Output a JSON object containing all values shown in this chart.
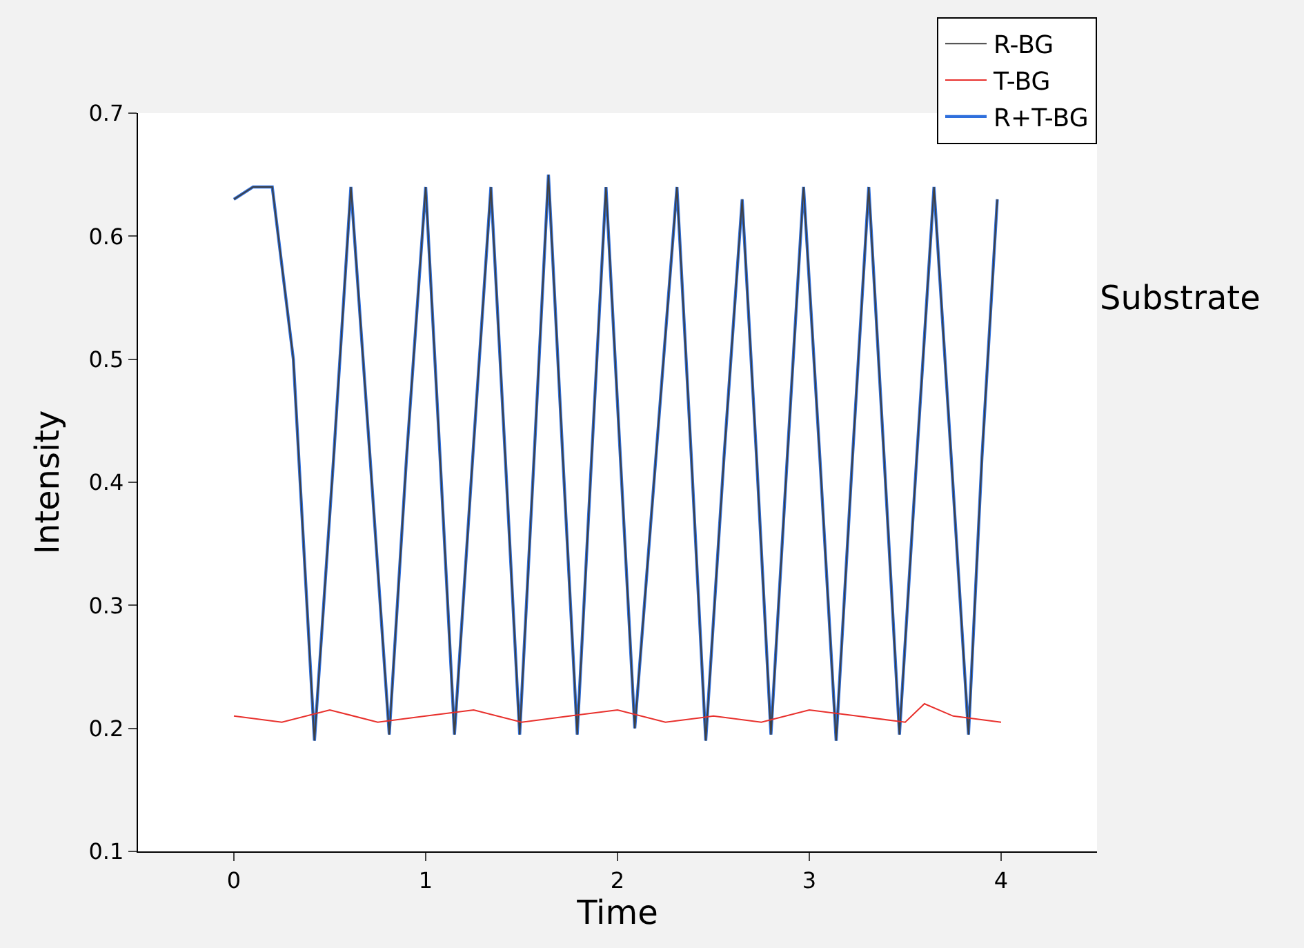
{
  "chart_data": {
    "type": "line",
    "xlabel": "Time",
    "ylabel": "Intensity",
    "xlim": [
      -0.5,
      4.5
    ],
    "xticks": [
      0,
      1,
      2,
      3,
      4
    ],
    "ylim": [
      0.1,
      0.7
    ],
    "yticks": [
      0.1,
      0.2,
      0.3,
      0.4,
      0.5,
      0.6,
      0.7
    ],
    "legend": "top right",
    "marker": "none",
    "line_style": "solid",
    "annotations": [
      "Substrate"
    ],
    "series": [
      {
        "name": "R+T-BG",
        "color": "#2f6fdc",
        "x": [
          0,
          0.1,
          0.2,
          0.31,
          0.42,
          0.52,
          0.61,
          0.71,
          0.81,
          0.9,
          1.0,
          1.075,
          1.15,
          1.245,
          1.34,
          1.415,
          1.49,
          1.565,
          1.64,
          1.715,
          1.79,
          1.865,
          1.94,
          2.015,
          2.09,
          2.2,
          2.31,
          2.385,
          2.46,
          2.555,
          2.65,
          2.725,
          2.8,
          2.885,
          2.97,
          3.055,
          3.14,
          3.225,
          3.31,
          3.39,
          3.47,
          3.56,
          3.65,
          3.74,
          3.83,
          3.9,
          3.98
        ],
        "values": [
          0.63,
          0.64,
          0.64,
          0.5,
          0.19,
          0.42,
          0.64,
          0.42,
          0.195,
          0.42,
          0.64,
          0.42,
          0.195,
          0.42,
          0.64,
          0.42,
          0.195,
          0.42,
          0.65,
          0.42,
          0.195,
          0.42,
          0.64,
          0.42,
          0.2,
          0.42,
          0.64,
          0.42,
          0.19,
          0.42,
          0.63,
          0.42,
          0.195,
          0.42,
          0.64,
          0.42,
          0.19,
          0.42,
          0.64,
          0.42,
          0.195,
          0.42,
          0.64,
          0.42,
          0.195,
          0.42,
          0.63
        ]
      },
      {
        "name": "R-BG",
        "color": "#404040",
        "x": [
          0,
          0.1,
          0.2,
          0.31,
          0.42,
          0.52,
          0.61,
          0.71,
          0.81,
          0.9,
          1.0,
          1.075,
          1.15,
          1.245,
          1.34,
          1.415,
          1.49,
          1.565,
          1.64,
          1.715,
          1.79,
          1.865,
          1.94,
          2.015,
          2.09,
          2.2,
          2.31,
          2.385,
          2.46,
          2.555,
          2.65,
          2.725,
          2.8,
          2.885,
          2.97,
          3.055,
          3.14,
          3.225,
          3.31,
          3.39,
          3.47,
          3.56,
          3.65,
          3.74,
          3.83,
          3.9,
          3.98
        ],
        "values": [
          0.63,
          0.64,
          0.64,
          0.5,
          0.19,
          0.42,
          0.64,
          0.42,
          0.195,
          0.42,
          0.64,
          0.42,
          0.195,
          0.42,
          0.64,
          0.42,
          0.195,
          0.42,
          0.65,
          0.42,
          0.195,
          0.42,
          0.64,
          0.42,
          0.2,
          0.42,
          0.64,
          0.42,
          0.19,
          0.42,
          0.63,
          0.42,
          0.195,
          0.42,
          0.64,
          0.42,
          0.19,
          0.42,
          0.64,
          0.42,
          0.195,
          0.42,
          0.64,
          0.42,
          0.195,
          0.42,
          0.63
        ]
      },
      {
        "name": "T-BG",
        "color": "#e8302c",
        "x": [
          0,
          0.25,
          0.5,
          0.75,
          1.0,
          1.25,
          1.5,
          1.75,
          2.0,
          2.25,
          2.5,
          2.75,
          3.0,
          3.25,
          3.5,
          3.6,
          3.75,
          4.0
        ],
        "values": [
          0.21,
          0.205,
          0.215,
          0.205,
          0.21,
          0.215,
          0.205,
          0.21,
          0.215,
          0.205,
          0.21,
          0.205,
          0.215,
          0.21,
          0.205,
          0.22,
          0.21,
          0.205
        ]
      }
    ]
  }
}
